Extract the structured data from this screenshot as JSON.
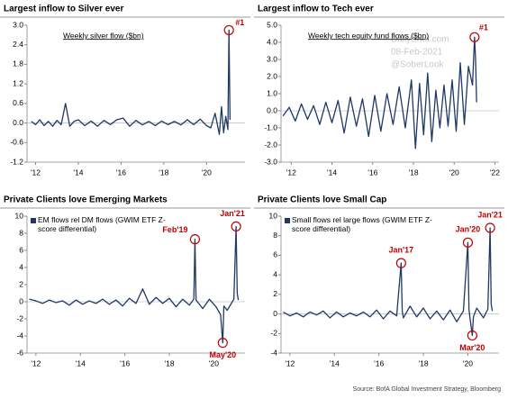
{
  "chart_data": [
    {
      "type": "line",
      "title": "Largest inflow to Silver ever",
      "subtitle": "Weekly  silver flow ($bn)",
      "color": "#1f3864",
      "x": [
        2011.8,
        2012.0,
        2012.2,
        2012.4,
        2012.6,
        2012.8,
        2013.0,
        2013.2,
        2013.4,
        2013.6,
        2013.8,
        2014.0,
        2014.3,
        2014.6,
        2014.9,
        2015.2,
        2015.5,
        2015.8,
        2016.1,
        2016.4,
        2016.7,
        2017.0,
        2017.3,
        2017.6,
        2017.9,
        2018.2,
        2018.5,
        2018.8,
        2019.1,
        2019.4,
        2019.7,
        2020.0,
        2020.2,
        2020.4,
        2020.6,
        2020.7,
        2020.8,
        2020.9,
        2021.0,
        2021.05,
        2021.1
      ],
      "values": [
        0.05,
        -0.05,
        0.1,
        -0.08,
        0.05,
        -0.1,
        0.08,
        -0.05,
        0.6,
        -0.1,
        0.05,
        0.1,
        -0.08,
        0.06,
        -0.1,
        0.08,
        -0.05,
        0.1,
        0.15,
        -0.1,
        0.08,
        -0.06,
        0.05,
        -0.08,
        0.06,
        -0.05,
        0.05,
        -0.06,
        0.1,
        -0.05,
        0.12,
        -0.08,
        -0.15,
        0.3,
        -0.35,
        0.5,
        -0.3,
        0.2,
        -0.2,
        2.85,
        0.1
      ],
      "xlim": [
        2011.6,
        2021.8
      ],
      "ylim": [
        -1.2,
        3.0
      ],
      "xticks": [
        {
          "value": 2012,
          "label": "'12"
        },
        {
          "value": 2014,
          "label": "'14"
        },
        {
          "value": 2016,
          "label": "'16"
        },
        {
          "value": 2018,
          "label": "'18"
        },
        {
          "value": 2020,
          "label": "'20"
        }
      ],
      "yticks": [
        -1.2,
        -0.6,
        {
          "value": 0,
          "label": "0.0"
        },
        0.6,
        1.2,
        1.8,
        2.4,
        {
          "value": 3,
          "label": "3.0"
        }
      ],
      "annotations": [
        "#1"
      ],
      "grid": false
    },
    {
      "type": "line",
      "title": "Largest inflow to Tech ever",
      "subtitle": "Weekly  tech equity fund flows ($bn)",
      "color": "#1f3864",
      "watermark": [
        "DailyShot.com",
        "08-Feb-2021",
        "@SoberLook"
      ],
      "x": [
        2011.6,
        2011.9,
        2012.2,
        2012.5,
        2012.8,
        2013.1,
        2013.4,
        2013.7,
        2014.0,
        2014.3,
        2014.6,
        2014.9,
        2015.2,
        2015.5,
        2015.8,
        2016.1,
        2016.4,
        2016.7,
        2017.0,
        2017.3,
        2017.6,
        2017.9,
        2018.1,
        2018.3,
        2018.5,
        2018.7,
        2018.9,
        2019.1,
        2019.3,
        2019.5,
        2019.7,
        2019.9,
        2020.1,
        2020.3,
        2020.5,
        2020.7,
        2020.9,
        2021.0,
        2021.05,
        2021.1
      ],
      "values": [
        -0.3,
        0.2,
        -0.6,
        0.4,
        -0.5,
        0.3,
        -0.8,
        0.5,
        -0.7,
        0.6,
        -1.3,
        0.8,
        -0.9,
        0.7,
        -1.5,
        0.9,
        -1.2,
        1.0,
        -0.8,
        1.4,
        -1.0,
        1.8,
        -2.2,
        1.6,
        -1.4,
        2.2,
        -1.8,
        1.2,
        -1.0,
        1.5,
        -0.9,
        1.8,
        -1.2,
        2.8,
        -0.8,
        2.6,
        1.5,
        4.3,
        3.0,
        0.5
      ],
      "xlim": [
        2011.5,
        2022.2
      ],
      "ylim": [
        -3,
        5
      ],
      "xticks": [
        {
          "value": 2012,
          "label": "'12"
        },
        {
          "value": 2014,
          "label": "'14"
        },
        {
          "value": 2016,
          "label": "'16"
        },
        {
          "value": 2018,
          "label": "'18"
        },
        {
          "value": 2020,
          "label": "'20"
        },
        {
          "value": 2022,
          "label": "'22"
        }
      ],
      "yticks": [
        {
          "value": -3,
          "label": "-3.0"
        },
        {
          "value": -2,
          "label": "-2.0"
        },
        {
          "value": -1,
          "label": "-1.0"
        },
        {
          "value": 0,
          "label": "0.0"
        },
        {
          "value": 1,
          "label": "1.0"
        },
        {
          "value": 2,
          "label": "2.0"
        },
        {
          "value": 3,
          "label": "3.0"
        },
        {
          "value": 4,
          "label": "4.0"
        },
        {
          "value": 5,
          "label": "5.0"
        }
      ],
      "annotations": [
        "#1"
      ],
      "grid": false
    },
    {
      "type": "line",
      "title": "Private Clients love Emerging Markets",
      "x": [
        2011.7,
        2012.0,
        2012.3,
        2012.6,
        2012.9,
        2013.2,
        2013.5,
        2013.8,
        2014.1,
        2014.4,
        2014.7,
        2015.0,
        2015.3,
        2015.6,
        2015.9,
        2016.2,
        2016.5,
        2016.8,
        2017.1,
        2017.4,
        2017.7,
        2018.0,
        2018.3,
        2018.6,
        2018.9,
        2019.1,
        2019.15,
        2019.2,
        2019.5,
        2019.8,
        2020.1,
        2020.3,
        2020.4,
        2020.45,
        2020.6,
        2020.9,
        2021.0,
        2021.05,
        2021.1
      ],
      "series": [
        {
          "name": "EM flows rel DM flows (GWIM ETF Z-score differential)",
          "color": "#1f3864",
          "values": [
            0.3,
            0.1,
            -0.2,
            0.2,
            -0.1,
            0.1,
            -0.4,
            0.2,
            -0.3,
            0.1,
            -0.2,
            0.3,
            -0.3,
            0.2,
            -0.5,
            0.4,
            -0.2,
            1.5,
            -0.3,
            0.5,
            -0.2,
            0.4,
            -0.6,
            0.3,
            -0.4,
            0.3,
            7.3,
            0.2,
            -0.8,
            0.3,
            -0.6,
            -1.5,
            -4.8,
            -0.5,
            -1.0,
            0.3,
            8.8,
            1.0,
            0.2
          ]
        }
      ],
      "xlim": [
        2011.6,
        2021.4
      ],
      "ylim": [
        -6,
        10
      ],
      "xticks": [
        {
          "value": 2012,
          "label": "'12"
        },
        {
          "value": 2014,
          "label": "'14"
        },
        {
          "value": 2016,
          "label": "'16"
        },
        {
          "value": 2018,
          "label": "'18"
        },
        {
          "value": 2020,
          "label": "'20"
        }
      ],
      "yticks": [
        -6,
        -4,
        -2,
        0,
        2,
        4,
        6,
        8,
        10
      ],
      "annotations": [
        "Feb'19",
        "Jan'21",
        "May'20"
      ],
      "grid": false
    },
    {
      "type": "line",
      "title": "Private Clients love Small Cap",
      "x": [
        2011.7,
        2012.0,
        2012.3,
        2012.6,
        2012.9,
        2013.2,
        2013.5,
        2013.8,
        2014.1,
        2014.4,
        2014.7,
        2015.0,
        2015.3,
        2015.6,
        2015.9,
        2016.2,
        2016.5,
        2016.8,
        2017.0,
        2017.05,
        2017.1,
        2017.4,
        2017.7,
        2018.0,
        2018.3,
        2018.6,
        2018.9,
        2019.2,
        2019.5,
        2019.8,
        2020.0,
        2020.05,
        2020.1,
        2020.2,
        2020.25,
        2020.4,
        2020.7,
        2020.9,
        2021.0,
        2021.05,
        2021.1
      ],
      "series": [
        {
          "name": "Small flows rel large flows (GWIM ETF Z-score differential)",
          "color": "#1f3864",
          "values": [
            0.2,
            -0.2,
            0.1,
            -0.3,
            0.2,
            -0.1,
            0.3,
            -0.4,
            0.2,
            -0.3,
            0.1,
            -0.2,
            0.2,
            -0.3,
            0.4,
            -0.5,
            0.3,
            -0.2,
            5.2,
            0.3,
            -0.4,
            0.8,
            -0.3,
            0.6,
            -0.5,
            0.3,
            -0.6,
            0.4,
            -0.8,
            0.3,
            7.3,
            0.5,
            -0.5,
            -2.2,
            -0.3,
            0.6,
            -0.4,
            0.5,
            8.8,
            1.0,
            0.3
          ]
        }
      ],
      "xlim": [
        2011.6,
        2021.4
      ],
      "ylim": [
        -4,
        10
      ],
      "xticks": [
        {
          "value": 2012,
          "label": "'12"
        },
        {
          "value": 2014,
          "label": "'14"
        },
        {
          "value": 2016,
          "label": "'16"
        },
        {
          "value": 2018,
          "label": "'18"
        },
        {
          "value": 2020,
          "label": "'20"
        }
      ],
      "yticks": [
        -4,
        -2,
        0,
        2,
        4,
        6,
        8,
        10
      ],
      "annotations": [
        "Jan'17",
        "Jan'20",
        "Jan'21",
        "Mar'20"
      ],
      "grid": false
    }
  ],
  "source": "Source: BofA Global Investment Strategy, Bloomberg"
}
